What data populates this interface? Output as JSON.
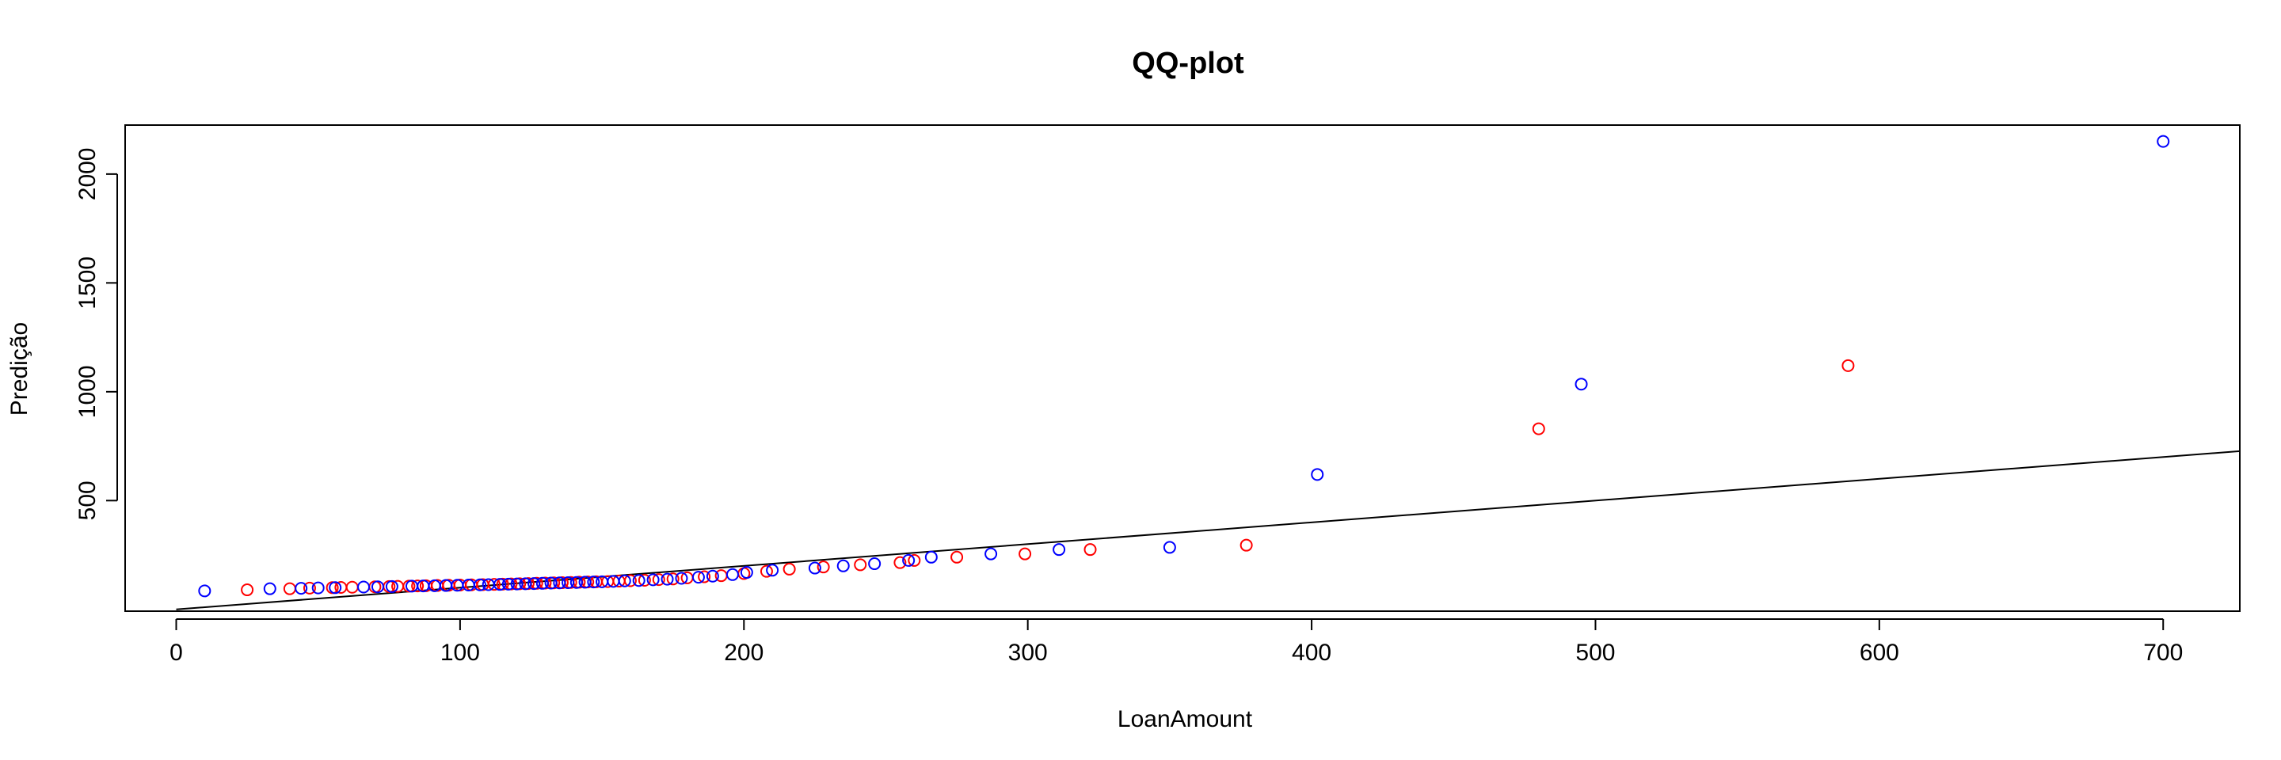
{
  "chart_data": {
    "type": "scatter",
    "title": "QQ-plot",
    "xlabel": "LoanAmount",
    "ylabel": "Predição",
    "xlim": [
      -18,
      727
    ],
    "ylim": [
      -8,
      2225
    ],
    "x_ticks": [
      0,
      100,
      200,
      300,
      400,
      500,
      600,
      700
    ],
    "y_ticks": [
      500,
      1000,
      1500,
      2000
    ],
    "grid": false,
    "reference_line": {
      "label": "",
      "points": [
        [
          0,
          0
        ],
        [
          727,
          727
        ]
      ],
      "color": "#000000"
    },
    "series": [
      {
        "color": "#ff0000",
        "marker": "open-circle",
        "points": [
          [
            25,
            90
          ],
          [
            40,
            95
          ],
          [
            47,
            98
          ],
          [
            55,
            100
          ],
          [
            58,
            101
          ],
          [
            62,
            102
          ],
          [
            70,
            104
          ],
          [
            75,
            105
          ],
          [
            78,
            106
          ],
          [
            82,
            107
          ],
          [
            85,
            108
          ],
          [
            88,
            109
          ],
          [
            92,
            110
          ],
          [
            96,
            111
          ],
          [
            100,
            112
          ],
          [
            104,
            113
          ],
          [
            108,
            114
          ],
          [
            112,
            115
          ],
          [
            115,
            116
          ],
          [
            118,
            117
          ],
          [
            121,
            118
          ],
          [
            124,
            119
          ],
          [
            127,
            120
          ],
          [
            130,
            121
          ],
          [
            133,
            122
          ],
          [
            136,
            123
          ],
          [
            139,
            124
          ],
          [
            142,
            125
          ],
          [
            145,
            126
          ],
          [
            148,
            127
          ],
          [
            152,
            128
          ],
          [
            156,
            130
          ],
          [
            160,
            132
          ],
          [
            165,
            134
          ],
          [
            170,
            137
          ],
          [
            175,
            140
          ],
          [
            180,
            145
          ],
          [
            186,
            150
          ],
          [
            192,
            155
          ],
          [
            200,
            165
          ],
          [
            208,
            175
          ],
          [
            216,
            185
          ],
          [
            228,
            195
          ],
          [
            241,
            205
          ],
          [
            255,
            215
          ],
          [
            260,
            225
          ],
          [
            275,
            240
          ],
          [
            299,
            255
          ],
          [
            322,
            275
          ],
          [
            377,
            295
          ],
          [
            480,
            830
          ],
          [
            589,
            1120
          ]
        ]
      },
      {
        "color": "#0000ff",
        "marker": "open-circle",
        "points": [
          [
            10,
            85
          ],
          [
            33,
            95
          ],
          [
            44,
            97
          ],
          [
            50,
            99
          ],
          [
            56,
            100
          ],
          [
            66,
            103
          ],
          [
            71,
            104
          ],
          [
            76,
            105
          ],
          [
            83,
            107
          ],
          [
            87,
            108
          ],
          [
            91,
            109
          ],
          [
            95,
            110
          ],
          [
            99,
            111
          ],
          [
            103,
            112
          ],
          [
            107,
            113
          ],
          [
            110,
            114
          ],
          [
            114,
            115
          ],
          [
            117,
            116
          ],
          [
            120,
            117
          ],
          [
            123,
            118
          ],
          [
            126,
            119
          ],
          [
            129,
            120
          ],
          [
            132,
            121
          ],
          [
            135,
            122
          ],
          [
            138,
            123
          ],
          [
            141,
            124
          ],
          [
            144,
            125
          ],
          [
            147,
            126
          ],
          [
            150,
            127
          ],
          [
            154,
            129
          ],
          [
            158,
            131
          ],
          [
            163,
            133
          ],
          [
            168,
            136
          ],
          [
            173,
            139
          ],
          [
            178,
            143
          ],
          [
            184,
            148
          ],
          [
            189,
            153
          ],
          [
            196,
            160
          ],
          [
            201,
            170
          ],
          [
            210,
            180
          ],
          [
            225,
            190
          ],
          [
            235,
            200
          ],
          [
            246,
            210
          ],
          [
            258,
            225
          ],
          [
            266,
            240
          ],
          [
            287,
            255
          ],
          [
            311,
            275
          ],
          [
            350,
            285
          ],
          [
            402,
            620
          ],
          [
            495,
            1035
          ],
          [
            700,
            2150
          ]
        ]
      }
    ]
  }
}
